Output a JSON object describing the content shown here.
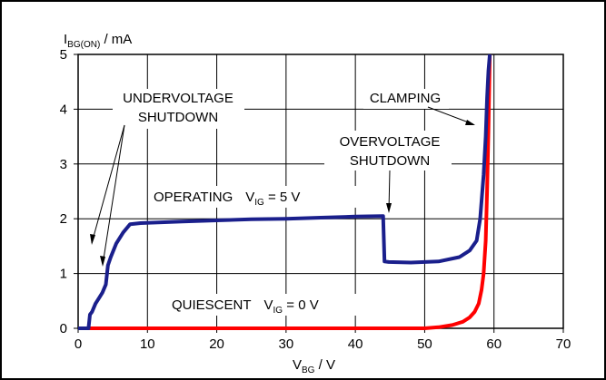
{
  "chart_data": {
    "type": "line",
    "xlabel": {
      "main": "V",
      "sub": "BG",
      "unit": " / V"
    },
    "ylabel": {
      "main": "I",
      "sub": "BG(ON)",
      "unit": " / mA"
    },
    "xlim": [
      0,
      70
    ],
    "ylim": [
      0,
      5
    ],
    "x_ticks": [
      0,
      10,
      20,
      30,
      40,
      50,
      60,
      70
    ],
    "y_ticks": [
      0,
      1,
      2,
      3,
      4,
      5
    ],
    "grid": true,
    "legend": "none",
    "series": [
      {
        "color": "#1a1f8c",
        "x": [
          0,
          1.5,
          1.7,
          2.0,
          2.5,
          3,
          3.5,
          4.0,
          4.3,
          4.7,
          5.5,
          6.5,
          7.5,
          9,
          15,
          20,
          25,
          30,
          35,
          40,
          44.0,
          44.2,
          44.8,
          48,
          52,
          55,
          56.5,
          57.5,
          58.0,
          58.5,
          58.8,
          59.0,
          59.2,
          59.4
        ],
        "y": [
          0,
          0,
          0.25,
          0.3,
          0.45,
          0.55,
          0.65,
          0.8,
          1.15,
          1.3,
          1.55,
          1.75,
          1.9,
          1.92,
          1.95,
          1.97,
          1.99,
          2.0,
          2.02,
          2.04,
          2.05,
          1.22,
          1.21,
          1.2,
          1.22,
          1.3,
          1.42,
          1.6,
          2.0,
          2.8,
          3.5,
          4.2,
          4.7,
          5.0
        ]
      },
      {
        "color": "#ff0000",
        "x": [
          0,
          10,
          20,
          30,
          40,
          50,
          52,
          54,
          55.5,
          56.5,
          57.2,
          57.8,
          58.2,
          58.5,
          58.8,
          59.0,
          59.2,
          59.4
        ],
        "y": [
          0,
          0,
          0,
          0,
          0,
          0,
          0.02,
          0.06,
          0.12,
          0.2,
          0.3,
          0.45,
          0.7,
          1.0,
          1.6,
          2.5,
          3.6,
          5.0
        ]
      }
    ],
    "annotations": [
      {
        "id": "undervoltage",
        "lines": [
          "UNDERVOLTAGE",
          "SHUTDOWN"
        ]
      },
      {
        "id": "clamping",
        "lines": [
          "CLAMPING"
        ]
      },
      {
        "id": "overvoltage",
        "lines": [
          "OVERVOLTAGE",
          "SHUTDOWN"
        ]
      },
      {
        "id": "operating",
        "text": "OPERATING",
        "cond_main": "V",
        "cond_sub": "IG",
        "cond_value": " = 5 V"
      },
      {
        "id": "quiescent",
        "text": "QUIESCENT",
        "cond_main": "V",
        "cond_sub": "IG",
        "cond_value": " = 0 V"
      }
    ]
  }
}
